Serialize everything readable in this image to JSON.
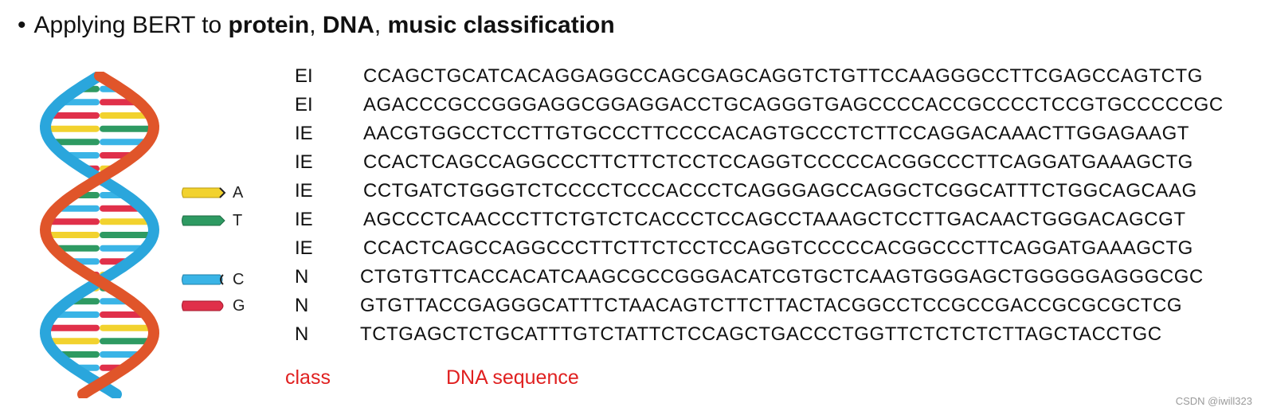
{
  "title": {
    "bullet": "•",
    "prefix": "Applying BERT to ",
    "protein": "protein",
    "sep1": ", ",
    "dna": "DNA",
    "sep2": ", ",
    "music": "music classification"
  },
  "legend": [
    {
      "letter": "A",
      "color": "#f2d22e"
    },
    {
      "letter": "T",
      "color": "#2e9a62"
    },
    {
      "letter": "C",
      "color": "#3ab4e6"
    },
    {
      "letter": "G",
      "color": "#e0304a"
    }
  ],
  "rows": [
    {
      "class": "EI",
      "sequence": "CCAGCTGCATCACAGGAGGCCAGCGAGCAGGTCTGTTCCAAGGGCCTTCGAGCCAGTCTG"
    },
    {
      "class": "EI",
      "sequence": "AGACCCGCCGGGAGGCGGAGGACCTGCAGGGTGAGCCCCACCGCCCCTCCGTGCCCCCGC"
    },
    {
      "class": "IE",
      "sequence": "AACGTGGCCTCCTTGTGCCCTTCCCCACAGTGCCCTCTTCCAGGACAAACTTGGAGAAGT"
    },
    {
      "class": "IE",
      "sequence": "CCACTCAGCCAGGCCCTTCTTCTCCTCCAGGTCCCCCACGGCCCTTCAGGATGAAAGCTG"
    },
    {
      "class": "IE",
      "sequence": "CCTGATCTGGGTCTCCCCTCCCACCCTCAGGGAGCCAGGCTCGGCATTTCTGGCAGCAAG"
    },
    {
      "class": "IE",
      "sequence": "AGCCCTCAACCCTTCTGTCTCACCCTCCAGCCTAAAGCTCCTTGACAACTGGGACAGCGT"
    },
    {
      "class": "IE",
      "sequence": "CCACTCAGCCAGGCCCTTCTTCTCCTCCAGGTCCCCCACGGCCCTTCAGGATGAAAGCTG"
    },
    {
      "class": "N",
      "sequence": "CTGTGTTCACCACATCAAGCGCCGGGACATCGTGCTCAAGTGGGAGCTGGGGGAGGGCGC"
    },
    {
      "class": "N",
      "sequence": "GTGTTACCGAGGGCATTTCTAACAGTCTTCTTACTACGGCCTCCGCCGACCGCGCGCTCG"
    },
    {
      "class": "N",
      "sequence": "TCTGAGCTCTGCATTTGTCTATTCTCCAGCTGACCCTGGTTCTCTCTCTTAGCTACCTGC"
    }
  ],
  "labels": {
    "class": "class",
    "sequence": "DNA sequence"
  },
  "watermark": "CSDN @iwill323"
}
